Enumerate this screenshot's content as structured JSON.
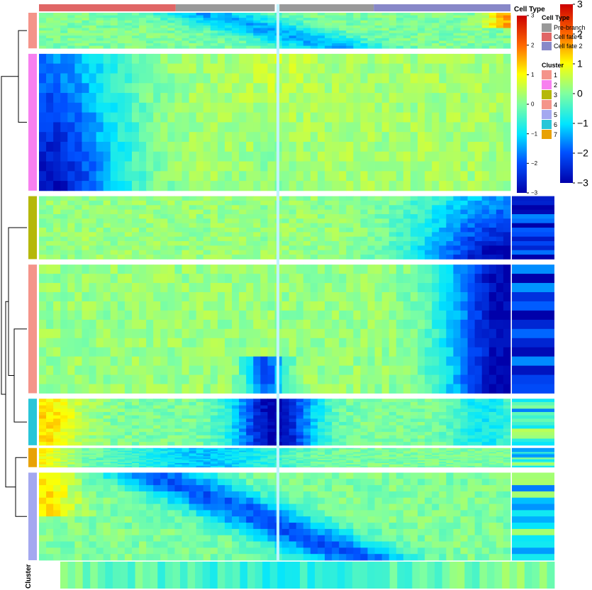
{
  "chart_data": {
    "type": "heatmap",
    "color_scale": {
      "ticks": [
        3,
        2,
        1,
        0,
        -1,
        -2,
        -3
      ],
      "colors": [
        "#0000aa",
        "#0050ff",
        "#00e5ff",
        "#7fffa0",
        "#ffff00",
        "#ff6a00",
        "#cc0000"
      ],
      "range": [
        -3,
        3
      ]
    },
    "inner_color_scale": {
      "ticks": [
        3,
        2,
        1,
        0,
        -1,
        -2,
        -3
      ]
    },
    "legends": {
      "cell_type": {
        "title": "Cell Type",
        "items": [
          {
            "label": "Pre-branch",
            "color": "#999999"
          },
          {
            "label": "Cell fate 1",
            "color": "#e06666"
          },
          {
            "label": "Cell fate 2",
            "color": "#8888c8"
          }
        ]
      },
      "cluster": {
        "title": "Cluster",
        "items": [
          {
            "label": "1",
            "color": "#f4948a"
          },
          {
            "label": "2",
            "color": "#f780ef"
          },
          {
            "label": "3",
            "color": "#b5b80a"
          },
          {
            "label": "4",
            "color": "#f4948a"
          },
          {
            "label": "5",
            "color": "#a4a8f0"
          },
          {
            "label": "6",
            "color": "#29c6d8"
          },
          {
            "label": "7",
            "color": "#e8a206"
          }
        ]
      }
    },
    "cell_type_bar": [
      {
        "type": "Cell fate 1",
        "from": 0.0,
        "to": 0.29
      },
      {
        "type": "Pre-branch",
        "from": 0.29,
        "to": 0.5
      },
      {
        "type": "Pre-branch",
        "from": 0.51,
        "to": 0.71
      },
      {
        "type": "Cell fate 2",
        "from": 0.71,
        "to": 1.0
      }
    ],
    "clusters": [
      {
        "id": "1",
        "row_start": 0.0,
        "row_end": 0.065,
        "color": "#f4948a",
        "pattern": "mid"
      },
      {
        "id": "2",
        "row_start": 0.075,
        "row_end": 0.325,
        "color": "#f780ef",
        "pattern": "early"
      },
      {
        "id": "3",
        "row_start": 0.335,
        "row_end": 0.45,
        "color": "#b5b80a",
        "pattern": "late"
      },
      {
        "id": "4",
        "row_start": 0.46,
        "row_end": 0.695,
        "color": "#f4948a",
        "pattern": "late_strong"
      },
      {
        "id": "6",
        "row_start": 0.705,
        "row_end": 0.79,
        "color": "#29c6d8",
        "pattern": "center"
      },
      {
        "id": "7",
        "row_start": 0.795,
        "row_end": 0.83,
        "color": "#e8a206",
        "pattern": "center_weak"
      },
      {
        "id": "5",
        "row_start": 0.84,
        "row_end": 1.0,
        "color": "#a4a8f0",
        "pattern": "mixed"
      }
    ],
    "annotation_label": "Cluster",
    "xlabel": "",
    "ylabel": ""
  }
}
